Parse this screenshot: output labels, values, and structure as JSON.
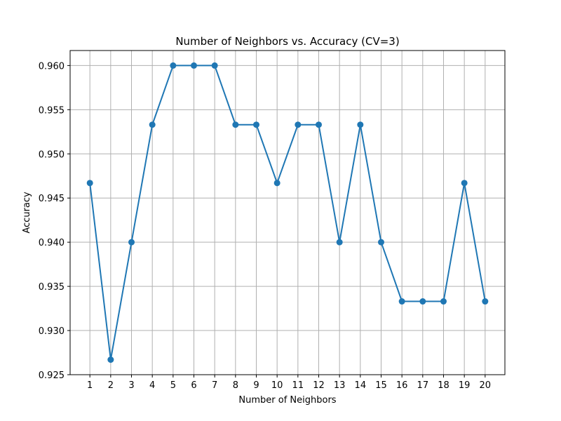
{
  "chart_data": {
    "type": "line",
    "title": "Number of Neighbors vs. Accuracy (CV=3)",
    "xlabel": "Number of Neighbors",
    "ylabel": "Accuracy",
    "x": [
      1,
      2,
      3,
      4,
      5,
      6,
      7,
      8,
      9,
      10,
      11,
      12,
      13,
      14,
      15,
      16,
      17,
      18,
      19,
      20
    ],
    "series": [
      {
        "values": [
          0.9467,
          0.9267,
          0.94,
          0.9533,
          0.96,
          0.96,
          0.96,
          0.9533,
          0.9533,
          0.9467,
          0.9533,
          0.9533,
          0.94,
          0.9533,
          0.94,
          0.9333,
          0.9333,
          0.9333,
          0.9467,
          0.9333
        ],
        "color": "#1f77b4",
        "marker": "circle"
      }
    ],
    "xlim": [
      0.05,
      20.95
    ],
    "ylim": [
      0.925,
      0.9617
    ],
    "x_ticks": [
      "1",
      "2",
      "3",
      "4",
      "5",
      "6",
      "7",
      "8",
      "9",
      "10",
      "11",
      "12",
      "13",
      "14",
      "15",
      "16",
      "17",
      "18",
      "19",
      "20"
    ],
    "y_ticks": [
      "0.925",
      "0.930",
      "0.935",
      "0.940",
      "0.945",
      "0.950",
      "0.955",
      "0.960"
    ],
    "grid": true
  }
}
